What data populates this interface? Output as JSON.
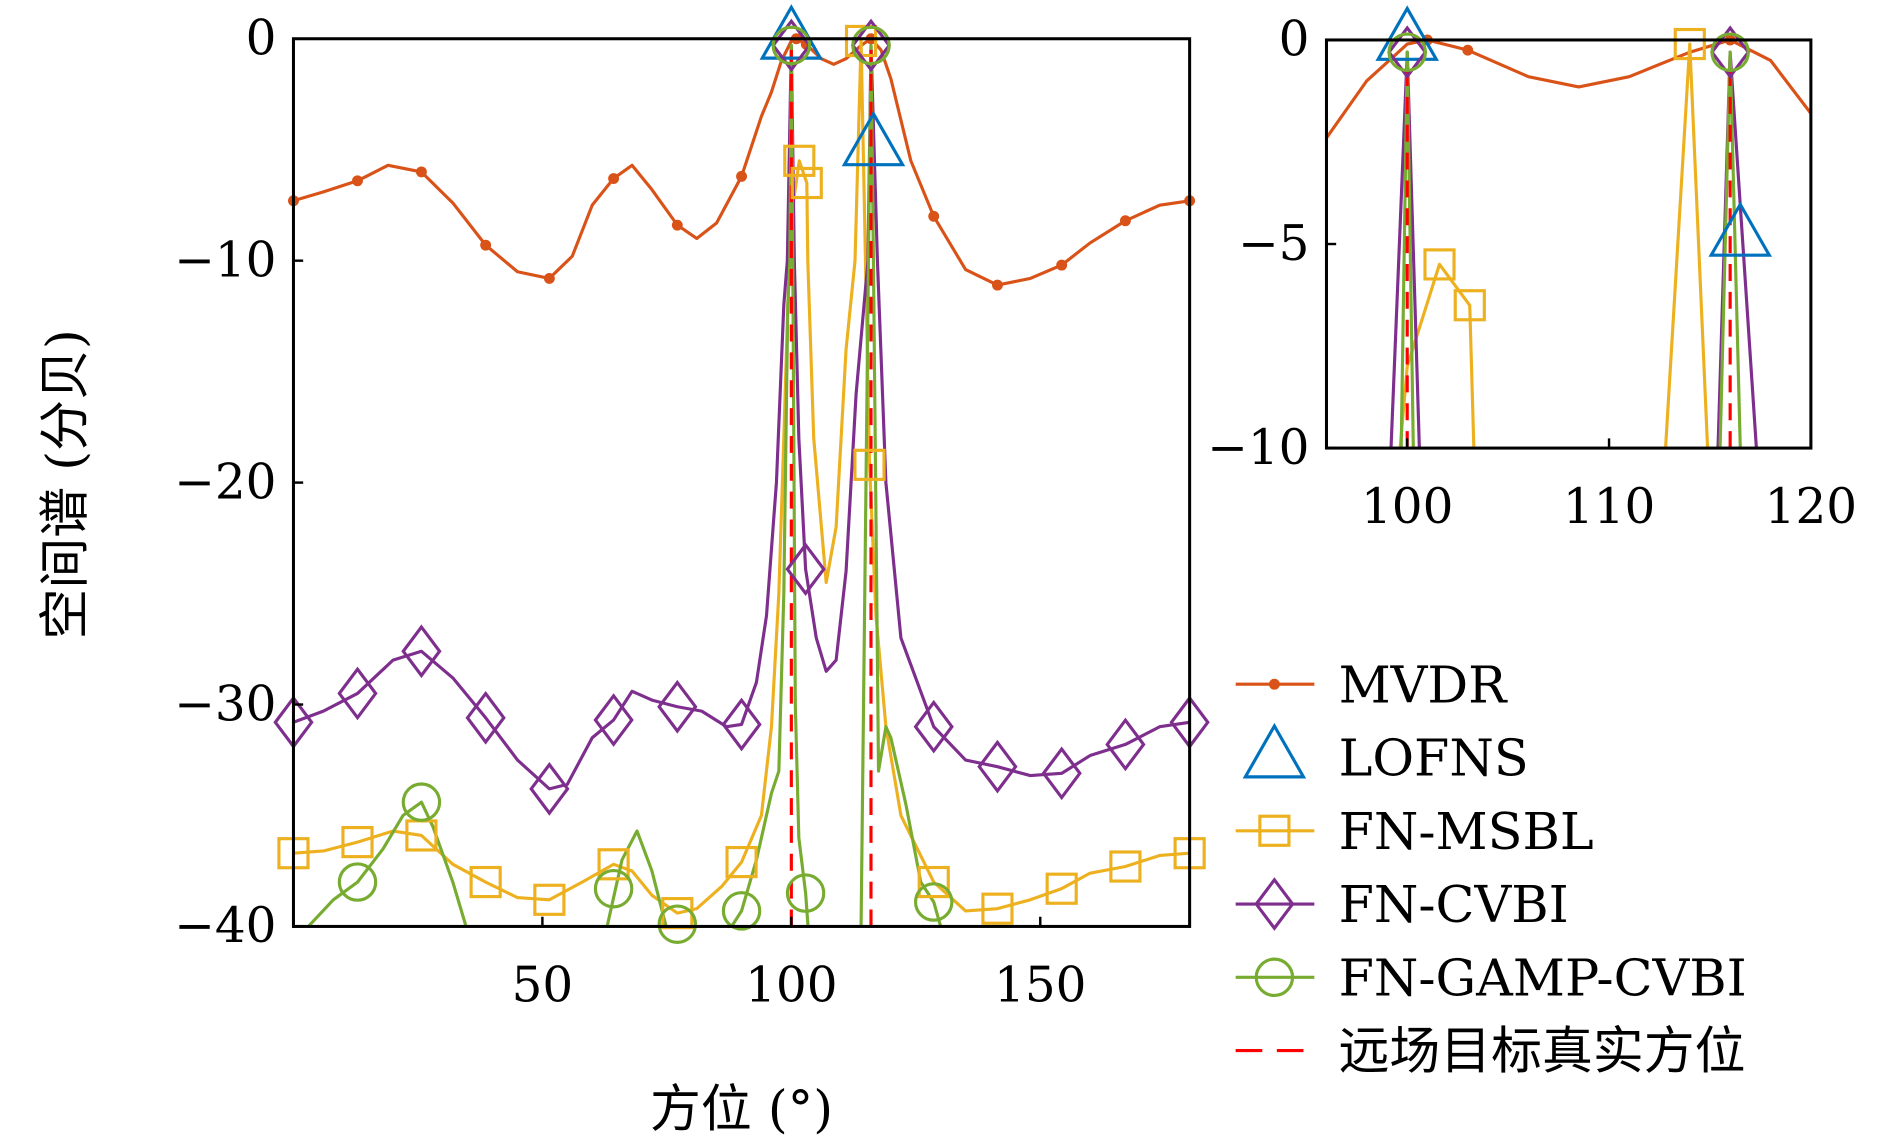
{
  "chart_data": [
    {
      "type": "line",
      "panel": "main",
      "xlabel": "方位 (°)",
      "ylabel": "空间谱 (分贝)",
      "xlim": [
        0,
        180
      ],
      "ylim": [
        -40,
        0
      ],
      "xticks": [
        50,
        100,
        150
      ],
      "xtick_labels": [
        "50",
        "100",
        "150"
      ],
      "yticks": [
        0,
        -10,
        -20,
        -30,
        -40
      ],
      "ytick_labels": [
        "0",
        "−10",
        "−20",
        "−30",
        "−40"
      ],
      "grid": false,
      "legend": "right"
    },
    {
      "type": "line",
      "panel": "inset",
      "xlim": [
        96,
        120
      ],
      "ylim": [
        -10,
        0
      ],
      "xticks": [
        100,
        110,
        120
      ],
      "xtick_labels": [
        "100",
        "110",
        "120"
      ],
      "yticks": [
        0,
        -5,
        -10
      ],
      "ytick_labels": [
        "0",
        "−5",
        "−10"
      ],
      "grid": false
    }
  ],
  "series": [
    {
      "name": "MVDR",
      "color": "#D95319",
      "marker": "dot",
      "line": "solid",
      "points": [
        [
          0,
          -7.3
        ],
        [
          6,
          -6.9
        ],
        [
          12.86,
          -6.4
        ],
        [
          19,
          -5.7
        ],
        [
          25.7,
          -6.0
        ],
        [
          32,
          -7.4
        ],
        [
          38.6,
          -9.3
        ],
        [
          45,
          -10.5
        ],
        [
          51.4,
          -10.8
        ],
        [
          56,
          -9.8
        ],
        [
          60,
          -7.5
        ],
        [
          64.3,
          -6.3
        ],
        [
          68,
          -5.7
        ],
        [
          72,
          -6.8
        ],
        [
          77.1,
          -8.4
        ],
        [
          81,
          -9.0
        ],
        [
          85,
          -8.3
        ],
        [
          90,
          -6.2
        ],
        [
          94,
          -3.5
        ],
        [
          96,
          -2.4
        ],
        [
          98,
          -1.0
        ],
        [
          100,
          -0.1
        ],
        [
          101,
          0
        ],
        [
          103,
          -0.25
        ],
        [
          106,
          -0.9
        ],
        [
          108.5,
          -1.15
        ],
        [
          111,
          -0.9
        ],
        [
          114,
          -0.3
        ],
        [
          116,
          0
        ],
        [
          118,
          -0.5
        ],
        [
          120,
          -1.8
        ],
        [
          124,
          -5.5
        ],
        [
          128.6,
          -8.0
        ],
        [
          135,
          -10.4
        ],
        [
          141.4,
          -11.1
        ],
        [
          148,
          -10.8
        ],
        [
          154.3,
          -10.2
        ],
        [
          160,
          -9.2
        ],
        [
          167.1,
          -8.2
        ],
        [
          174,
          -7.5
        ],
        [
          180,
          -7.3
        ]
      ],
      "markers": [
        [
          0,
          -7.3
        ],
        [
          12.86,
          -6.4
        ],
        [
          25.7,
          -6.0
        ],
        [
          38.6,
          -9.3
        ],
        [
          51.4,
          -10.8
        ],
        [
          64.3,
          -6.3
        ],
        [
          77.1,
          -8.4
        ],
        [
          90,
          -6.2
        ],
        [
          101,
          0
        ],
        [
          103,
          -0.25
        ],
        [
          116,
          0
        ],
        [
          128.6,
          -8.0
        ],
        [
          141.4,
          -11.1
        ],
        [
          154.3,
          -10.2
        ],
        [
          167.1,
          -8.2
        ],
        [
          180,
          -7.3
        ]
      ]
    },
    {
      "name": "LOFNS",
      "color": "#0072BD",
      "marker": "triangle",
      "line": "none",
      "points": [],
      "markers": [
        [
          100,
          0
        ],
        [
          116.5,
          -4.8
        ]
      ]
    },
    {
      "name": "FN-MSBL",
      "color": "#EDB120",
      "marker": "square",
      "line": "solid",
      "points": [
        [
          0,
          -36.7
        ],
        [
          6,
          -36.6
        ],
        [
          12.86,
          -36.2
        ],
        [
          20,
          -35.7
        ],
        [
          25.7,
          -35.9
        ],
        [
          32,
          -37.2
        ],
        [
          38.6,
          -38
        ],
        [
          45,
          -38.7
        ],
        [
          51.4,
          -38.8
        ],
        [
          58,
          -38
        ],
        [
          64.3,
          -37.2
        ],
        [
          68,
          -37.5
        ],
        [
          72,
          -38.6
        ],
        [
          77.1,
          -39.4
        ],
        [
          81,
          -39.2
        ],
        [
          86,
          -38.2
        ],
        [
          90,
          -37.1
        ],
        [
          94,
          -35
        ],
        [
          96,
          -31
        ],
        [
          97.5,
          -25
        ],
        [
          98.5,
          -18
        ],
        [
          99.3,
          -12
        ],
        [
          100,
          -8
        ],
        [
          101.6,
          -5.5
        ],
        [
          103.1,
          -6.5
        ],
        [
          103.3,
          -10
        ],
        [
          104.5,
          -18
        ],
        [
          107,
          -24.5
        ],
        [
          109,
          -22
        ],
        [
          111,
          -14
        ],
        [
          112.8,
          -10
        ],
        [
          114,
          -0.1
        ],
        [
          115.7,
          -19.2
        ],
        [
          117,
          -26
        ],
        [
          119,
          -31
        ],
        [
          122,
          -35
        ],
        [
          128.6,
          -38
        ],
        [
          135,
          -39.3
        ],
        [
          141.4,
          -39.2
        ],
        [
          148,
          -38.8
        ],
        [
          154.3,
          -38.3
        ],
        [
          160,
          -37.6
        ],
        [
          167.1,
          -37.3
        ],
        [
          174,
          -36.8
        ],
        [
          180,
          -36.7
        ]
      ],
      "markers": [
        [
          0,
          -36.7
        ],
        [
          12.86,
          -36.2
        ],
        [
          25.7,
          -35.9
        ],
        [
          38.6,
          -38
        ],
        [
          51.4,
          -38.8
        ],
        [
          64.3,
          -37.2
        ],
        [
          77.1,
          -39.4
        ],
        [
          90,
          -37.1
        ],
        [
          101.6,
          -5.5
        ],
        [
          103.1,
          -6.5
        ],
        [
          114,
          -0.1
        ],
        [
          115.7,
          -19.2
        ],
        [
          128.6,
          -38
        ],
        [
          141.4,
          -39.2
        ],
        [
          154.3,
          -38.3
        ],
        [
          167.1,
          -37.3
        ],
        [
          180,
          -36.7
        ]
      ]
    },
    {
      "name": "FN-CVBI",
      "color": "#7E2F8E",
      "marker": "diamond",
      "line": "solid",
      "points": [
        [
          0,
          -30.8
        ],
        [
          6,
          -30.3
        ],
        [
          12.86,
          -29.5
        ],
        [
          20,
          -28
        ],
        [
          25.7,
          -27.6
        ],
        [
          32,
          -28.8
        ],
        [
          38.6,
          -30.6
        ],
        [
          45,
          -32.5
        ],
        [
          51.4,
          -33.8
        ],
        [
          55,
          -33.6
        ],
        [
          60,
          -31.5
        ],
        [
          64.3,
          -30.7
        ],
        [
          68,
          -29.4
        ],
        [
          72,
          -29.8
        ],
        [
          77.1,
          -30.1
        ],
        [
          82,
          -30.3
        ],
        [
          87,
          -31
        ],
        [
          90,
          -30.9
        ],
        [
          93,
          -29
        ],
        [
          95,
          -26
        ],
        [
          97,
          -20
        ],
        [
          98.5,
          -12
        ],
        [
          99.2,
          -10
        ],
        [
          100,
          -0.3
        ],
        [
          100.6,
          -10
        ],
        [
          101.5,
          -18
        ],
        [
          102.86,
          -23.9
        ],
        [
          105,
          -27
        ],
        [
          107,
          -28.5
        ],
        [
          109,
          -28
        ],
        [
          111,
          -24
        ],
        [
          113,
          -16
        ],
        [
          115.4,
          -10
        ],
        [
          116,
          -0.3
        ],
        [
          117.3,
          -10
        ],
        [
          119,
          -20
        ],
        [
          122,
          -27
        ],
        [
          128.6,
          -31
        ],
        [
          135,
          -32.5
        ],
        [
          141.4,
          -32.8
        ],
        [
          148,
          -33.2
        ],
        [
          154.3,
          -33.1
        ],
        [
          160,
          -32.3
        ],
        [
          167.1,
          -31.8
        ],
        [
          174,
          -31
        ],
        [
          180,
          -30.8
        ]
      ],
      "markers": [
        [
          0,
          -30.8
        ],
        [
          12.86,
          -29.5
        ],
        [
          25.7,
          -27.6
        ],
        [
          38.6,
          -30.6
        ],
        [
          51.4,
          -33.8
        ],
        [
          64.3,
          -30.7
        ],
        [
          77.1,
          -30.1
        ],
        [
          90,
          -30.9
        ],
        [
          100,
          -0.3
        ],
        [
          102.86,
          -23.9
        ],
        [
          116,
          -0.3
        ],
        [
          128.6,
          -31
        ],
        [
          141.4,
          -32.8
        ],
        [
          154.3,
          -33.1
        ],
        [
          167.1,
          -31.8
        ],
        [
          180,
          -30.8
        ]
      ]
    },
    {
      "name": "FN-GAMP-CVBI",
      "color": "#77AC30",
      "marker": "circle",
      "line": "solid",
      "points": [
        [
          0,
          -42
        ],
        [
          3,
          -40
        ],
        [
          8,
          -38.8
        ],
        [
          12.86,
          -38
        ],
        [
          18,
          -36.5
        ],
        [
          22,
          -35
        ],
        [
          25.7,
          -34.4
        ],
        [
          28,
          -35.5
        ],
        [
          32,
          -38
        ],
        [
          36,
          -41
        ],
        [
          48,
          -46
        ],
        [
          60,
          -44
        ],
        [
          63,
          -40
        ],
        [
          66,
          -37
        ],
        [
          69,
          -35.7
        ],
        [
          72,
          -37.5
        ],
        [
          76,
          -41
        ],
        [
          84,
          -44
        ],
        [
          88,
          -40
        ],
        [
          90,
          -39.3
        ],
        [
          93,
          -37
        ],
        [
          96,
          -34
        ],
        [
          97.5,
          -33
        ],
        [
          98.5,
          -25
        ],
        [
          99.3,
          -12
        ],
        [
          99.7,
          -10
        ],
        [
          100,
          -0.3
        ],
        [
          100.3,
          -10
        ],
        [
          100.8,
          -30
        ],
        [
          101.5,
          -36
        ],
        [
          102.86,
          -38.5
        ],
        [
          104,
          -42
        ],
        [
          112,
          -45
        ],
        [
          114,
          -40
        ],
        [
          115.5,
          -10
        ],
        [
          116,
          -0.3
        ],
        [
          116.5,
          -10
        ],
        [
          117.5,
          -33
        ],
        [
          119,
          -31
        ],
        [
          120,
          -31.5
        ],
        [
          123,
          -34.5
        ],
        [
          126,
          -38
        ],
        [
          128.6,
          -38.9
        ],
        [
          130,
          -40
        ],
        [
          132,
          -43
        ],
        [
          180,
          -45
        ]
      ],
      "markers": [
        [
          12.86,
          -38
        ],
        [
          25.7,
          -34.4
        ],
        [
          64.3,
          -38.3
        ],
        [
          77.1,
          -39.9
        ],
        [
          90,
          -39.3
        ],
        [
          100,
          -0.3
        ],
        [
          102.86,
          -38.5
        ],
        [
          116,
          -0.3
        ],
        [
          128.6,
          -38.9
        ]
      ]
    },
    {
      "name": "远场目标真实方位",
      "color": "#FF0000",
      "marker": "none",
      "line": "dashed",
      "vlines": [
        100,
        116
      ]
    }
  ]
}
